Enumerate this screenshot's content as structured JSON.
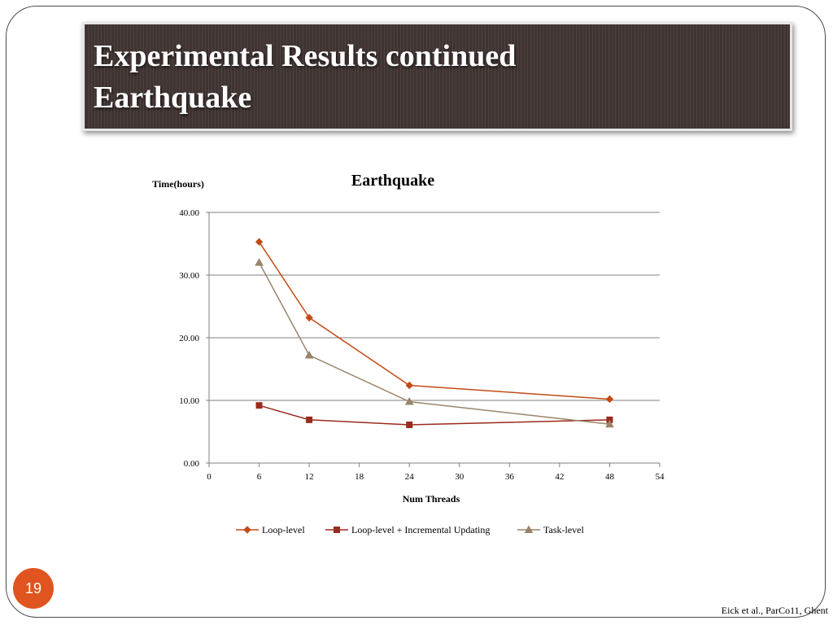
{
  "slide": {
    "title_line1": "Experimental Results continued",
    "title_line2": "Earthquake",
    "page_number": "19",
    "citation": "Eick et al., ParCo11, Ghent"
  },
  "colors": {
    "title_background": "#3f3431",
    "page_badge": "#e0541f"
  },
  "chart_data": {
    "type": "line",
    "title": "Earthquake",
    "xlabel": "Num Threads",
    "ylabel": "Time(hours)",
    "x": [
      6,
      12,
      24,
      48
    ],
    "xlim": [
      0,
      54
    ],
    "ylim": [
      0,
      40
    ],
    "x_ticks": [
      0,
      6,
      12,
      18,
      24,
      30,
      36,
      42,
      48,
      54
    ],
    "y_ticks": [
      0,
      10,
      20,
      30,
      40
    ],
    "y_tick_labels": [
      "0.00",
      "10.00",
      "20.00",
      "30.00",
      "40.00"
    ],
    "grid": "horizontal",
    "legend_position": "bottom",
    "series": [
      {
        "name": "Loop-level",
        "values": [
          35.3,
          23.2,
          12.4,
          10.2
        ],
        "color": "#c44b15",
        "marker": "diamond"
      },
      {
        "name": "Loop-level + Incremental Updating",
        "values": [
          9.2,
          6.9,
          6.1,
          6.9
        ],
        "color": "#9b2a1e",
        "marker": "square"
      },
      {
        "name": "Task-level",
        "values": [
          32.0,
          17.2,
          9.8,
          6.2
        ],
        "color": "#9a8469",
        "marker": "triangle"
      }
    ]
  }
}
